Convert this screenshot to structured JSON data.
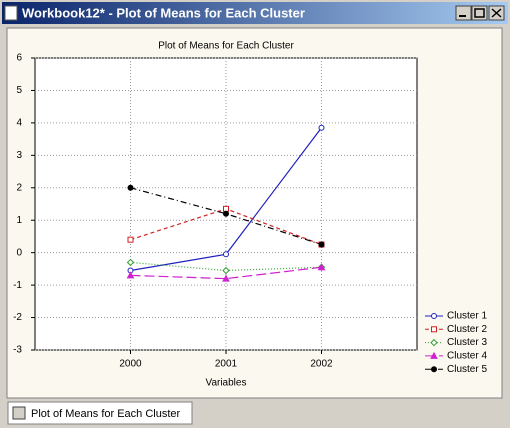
{
  "window": {
    "title": "Workbook12* - Plot of Means for Each Cluster",
    "tab": "Plot of Means for Each Cluster"
  },
  "chart_data": {
    "type": "line",
    "title": "Plot of Means for Each Cluster",
    "x_label": "Variables",
    "categories": [
      "2000",
      "2001",
      "2002"
    ],
    "ylim": [
      -3,
      6
    ],
    "yticks": [
      -3,
      -2,
      -1,
      0,
      1,
      2,
      3,
      4,
      5,
      6
    ],
    "grid": true,
    "legend": "lower-right",
    "series": [
      {
        "name": "Cluster 1",
        "color": "#2020c0",
        "marker": "circle",
        "dash": "solid",
        "values": [
          -0.55,
          -0.05,
          3.85
        ]
      },
      {
        "name": "Cluster 2",
        "color": "#d02020",
        "marker": "square",
        "dash": "dashed",
        "values": [
          0.4,
          1.35,
          0.25
        ]
      },
      {
        "name": "Cluster 3",
        "color": "#30a030",
        "marker": "diamond",
        "dash": "dotted",
        "values": [
          -0.3,
          -0.55,
          -0.45
        ]
      },
      {
        "name": "Cluster 4",
        "color": "#d020d0",
        "marker": "triangle",
        "dash": "longdash",
        "values": [
          -0.7,
          -0.8,
          -0.45
        ]
      },
      {
        "name": "Cluster 5",
        "color": "#000000",
        "marker": "filled-circle",
        "dash": "dashdot",
        "values": [
          2.0,
          1.2,
          0.25
        ]
      }
    ]
  }
}
